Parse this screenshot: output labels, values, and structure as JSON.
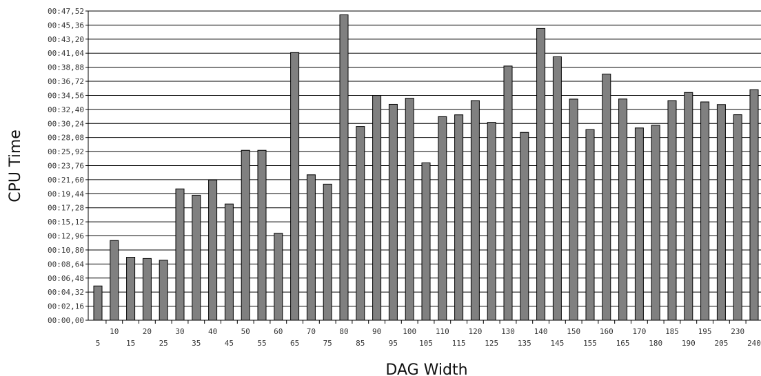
{
  "chart_data": {
    "type": "bar",
    "xlabel": "DAG Width",
    "ylabel": "CPU Time",
    "categories": [
      "5",
      "10",
      "15",
      "20",
      "25",
      "30",
      "35",
      "40",
      "45",
      "50",
      "55",
      "60",
      "65",
      "70",
      "75",
      "80",
      "85",
      "90",
      "95",
      "100",
      "105",
      "110",
      "115",
      "120",
      "125",
      "130",
      "135",
      "140",
      "145",
      "150",
      "155",
      "160",
      "165",
      "170",
      "180",
      "185",
      "190",
      "195",
      "205",
      "230",
      "240"
    ],
    "values_seconds": [
      316,
      735,
      581,
      569,
      553,
      1211,
      1153,
      1293,
      1072,
      1567,
      1567,
      802,
      2468,
      1341,
      1255,
      2816,
      1787,
      2073,
      1991,
      2047,
      1451,
      1877,
      1894,
      2025,
      1825,
      2344,
      1732,
      2690,
      2429,
      2039,
      1758,
      2270,
      2040,
      1773,
      1798,
      2025,
      2100,
      2013,
      1989,
      1895,
      2126
    ],
    "yticks": [
      "00:00,00",
      "00:02,16",
      "00:04,32",
      "00:06,48",
      "00:08,64",
      "00:10,80",
      "00:12,96",
      "00:15,12",
      "00:17,28",
      "00:19,44",
      "00:21,60",
      "00:23,76",
      "00:25,92",
      "00:28,08",
      "00:30,24",
      "00:32,40",
      "00:34,56",
      "00:36,72",
      "00:38,88",
      "00:41,04",
      "00:43,20",
      "00:45,36",
      "00:47,52"
    ],
    "ytick_step_seconds": 129.6,
    "ylim_seconds": [
      0,
      2851.2
    ],
    "bar_color": "#808080",
    "grid": true,
    "legend": false
  }
}
